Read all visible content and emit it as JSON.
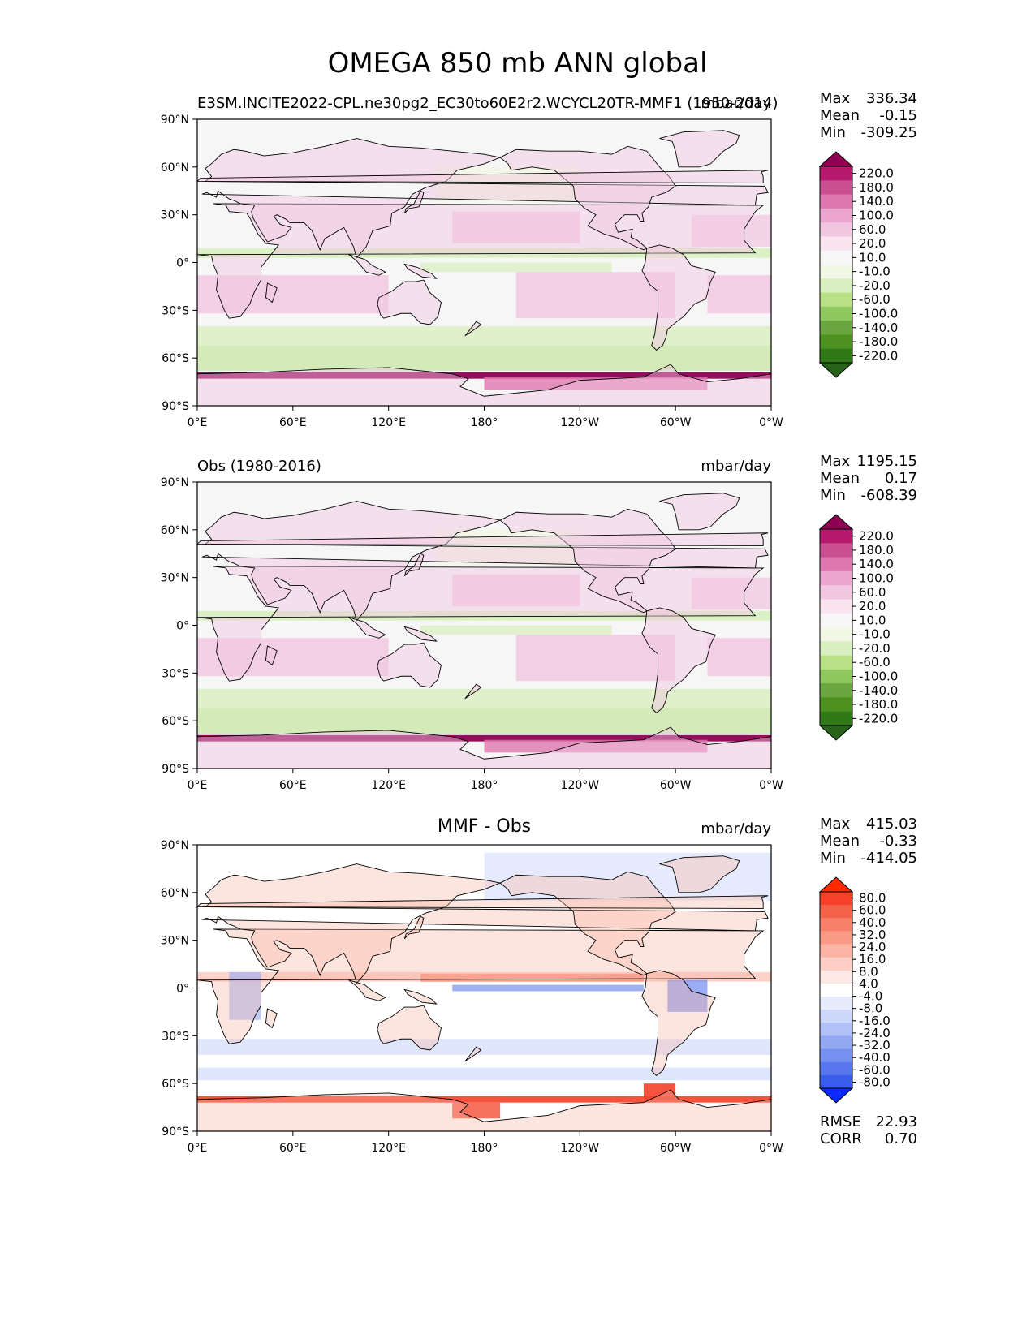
{
  "figure": {
    "title": "OMEGA 850 mb ANN global"
  },
  "colors": {
    "land_line": "#000000",
    "ocean_base": "#f6f6f6"
  },
  "chart_data": [
    {
      "type": "heatmap",
      "name": "test",
      "left_title": "E3SM.INCITE2022-CPL.ne30pg2_EC30to60E2r2.WCYCL20TR-MMF1 (1950-2014)",
      "center_title": "",
      "units": "mbar/day",
      "stats": {
        "max_label": "Max",
        "max": "336.34",
        "mean_label": "Mean",
        "mean": "-0.15",
        "min_label": "Min",
        "min": "-309.25"
      },
      "xlim": [
        0,
        360
      ],
      "ylim": [
        -90,
        90
      ],
      "xticks": [
        "0°E",
        "60°E",
        "120°E",
        "180°",
        "120°W",
        "60°W",
        "0°W"
      ],
      "yticks": [
        "90°N",
        "60°N",
        "30°N",
        "0°",
        "30°S",
        "60°S",
        "90°S"
      ],
      "colorbar": {
        "levels": [
          "220.0",
          "180.0",
          "140.0",
          "100.0",
          "60.0",
          "20.0",
          "10.0",
          "-10.0",
          "-20.0",
          "-60.0",
          "-100.0",
          "-140.0",
          "-180.0",
          "-220.0"
        ],
        "colors": [
          "#8e0152",
          "#b4196e",
          "#c94f91",
          "#de77ae",
          "#eaa6cf",
          "#f1c6e0",
          "#f9e4ef",
          "#f7f7f7",
          "#f2f7e6",
          "#d9efc1",
          "#b8e186",
          "#8fc85f",
          "#6ba53f",
          "#4d9221",
          "#317818",
          "#276419"
        ],
        "top_color": "#8e0152",
        "bottom_color": "#276419"
      }
    },
    {
      "type": "heatmap",
      "name": "reference",
      "left_title": "Obs (1980-2016)",
      "center_title": "",
      "units": "mbar/day",
      "stats": {
        "max_label": "Max",
        "max": "1195.15",
        "mean_label": "Mean",
        "mean": "0.17",
        "min_label": "Min",
        "min": "-608.39"
      },
      "xlim": [
        0,
        360
      ],
      "ylim": [
        -90,
        90
      ],
      "xticks": [
        "0°E",
        "60°E",
        "120°E",
        "180°",
        "120°W",
        "60°W",
        "0°W"
      ],
      "yticks": [
        "90°N",
        "60°N",
        "30°N",
        "0°",
        "30°S",
        "60°S",
        "90°S"
      ],
      "colorbar": {
        "levels": [
          "220.0",
          "180.0",
          "140.0",
          "100.0",
          "60.0",
          "20.0",
          "10.0",
          "-10.0",
          "-20.0",
          "-60.0",
          "-100.0",
          "-140.0",
          "-180.0",
          "-220.0"
        ],
        "colors": [
          "#8e0152",
          "#b4196e",
          "#c94f91",
          "#de77ae",
          "#eaa6cf",
          "#f1c6e0",
          "#f9e4ef",
          "#f7f7f7",
          "#f2f7e6",
          "#d9efc1",
          "#b8e186",
          "#8fc85f",
          "#6ba53f",
          "#4d9221",
          "#317818",
          "#276419"
        ],
        "top_color": "#8e0152",
        "bottom_color": "#276419"
      }
    },
    {
      "type": "heatmap",
      "name": "difference",
      "left_title": "",
      "center_title": "MMF - Obs",
      "units": "mbar/day",
      "stats": {
        "max_label": "Max",
        "max": "415.03",
        "mean_label": "Mean",
        "mean": "-0.33",
        "min_label": "Min",
        "min": "-414.05"
      },
      "rmse": {
        "rmse_label": "RMSE",
        "rmse": "22.93",
        "corr_label": "CORR",
        "corr": "0.70"
      },
      "xlim": [
        0,
        360
      ],
      "ylim": [
        -90,
        90
      ],
      "xticks": [
        "0°E",
        "60°E",
        "120°E",
        "180°",
        "120°W",
        "60°W",
        "0°W"
      ],
      "yticks": [
        "90°N",
        "60°N",
        "30°N",
        "0°",
        "30°S",
        "60°S",
        "90°S"
      ],
      "colorbar": {
        "levels": [
          "80.0",
          "60.0",
          "40.0",
          "32.0",
          "24.0",
          "16.0",
          "8.0",
          "4.0",
          "-4.0",
          "-8.0",
          "-16.0",
          "-24.0",
          "-32.0",
          "-40.0",
          "-60.0",
          "-80.0"
        ],
        "colors": [
          "#ff2000",
          "#f5402a",
          "#f5624a",
          "#f7806a",
          "#f99a86",
          "#fbb4a4",
          "#fdcfc4",
          "#feeae4",
          "#ffffff",
          "#e6ecfc",
          "#ccd7fa",
          "#b0c1f7",
          "#93a9f4",
          "#7690f1",
          "#5877ee",
          "#3a5eeb",
          "#1a3cf0"
        ],
        "top_color": "#ff2a00",
        "bottom_color": "#0a2aff"
      }
    }
  ]
}
